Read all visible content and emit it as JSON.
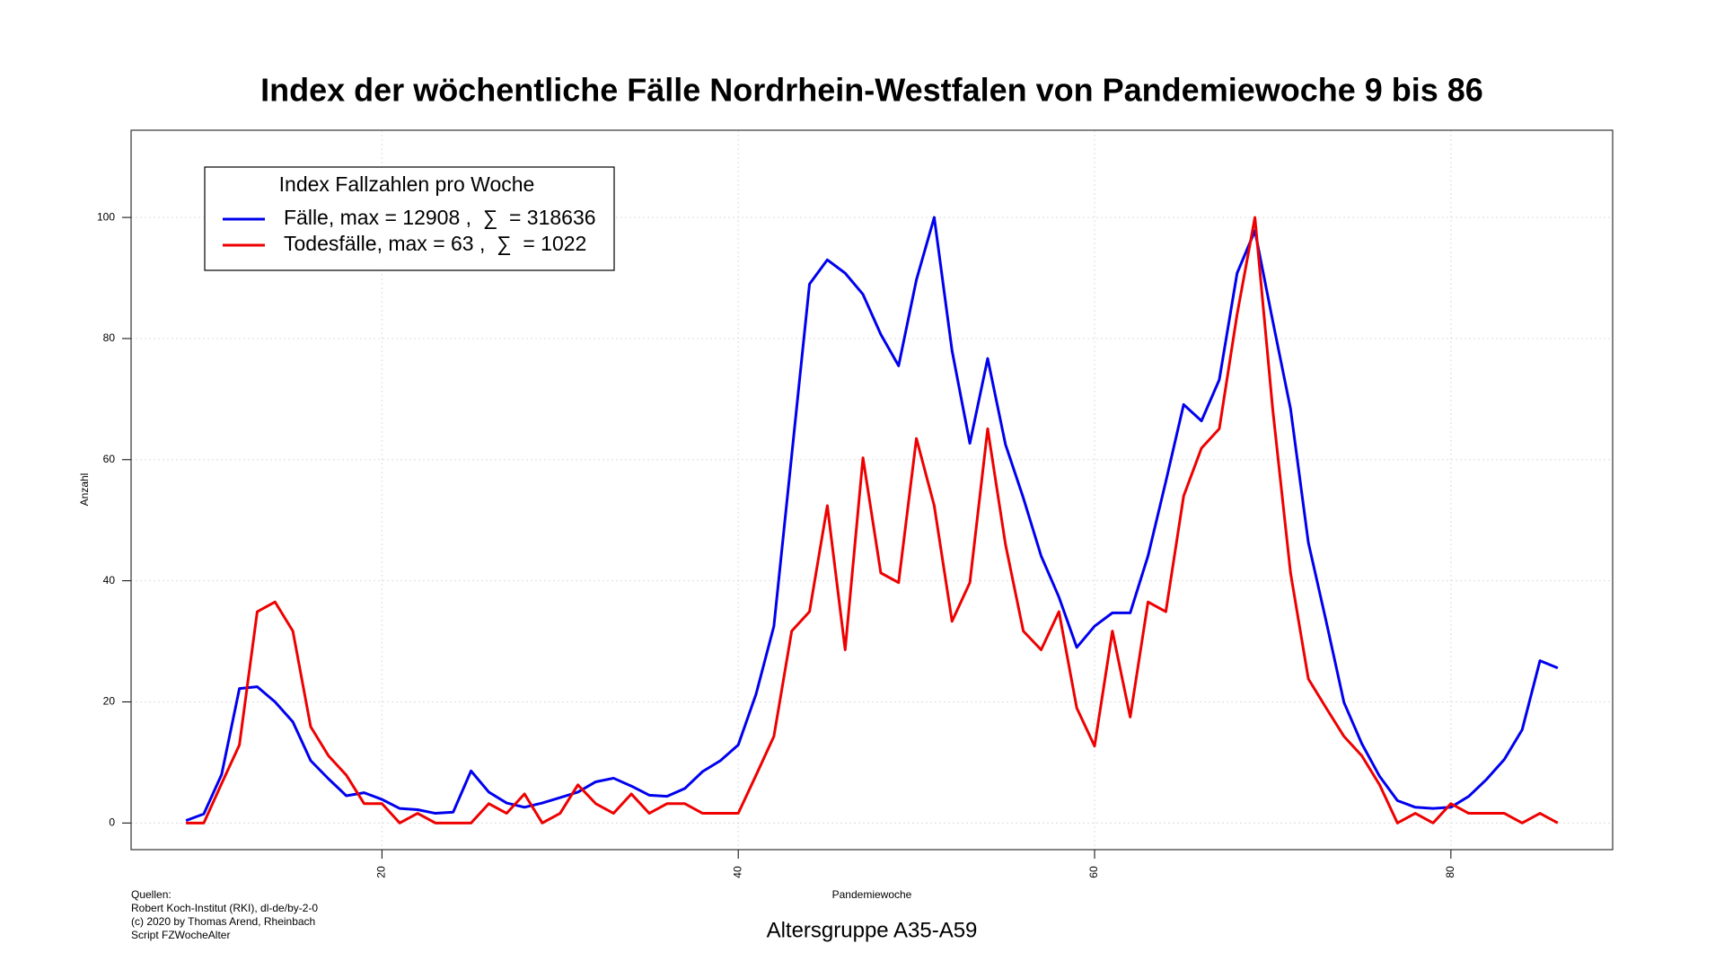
{
  "chart_data": {
    "type": "line",
    "title": "Index der wöchentliche Fälle Nordrhein-Westfalen von Pandemiewoche 9 bis 86",
    "subtitle": "Altersgruppe A35-A59",
    "x_label": "Pandemiewoche",
    "y_label": "Anzahl",
    "legend_title": "Index Fallzahlen pro Woche",
    "legend_position": "top-left",
    "notes": [
      "Quellen:",
      "Robert Koch-Institut (RKI), dl-de/by-2-0",
      "(c) 2020 by Thomas Arend, Rheinbach",
      "Script FZWocheAlter"
    ],
    "grid": true,
    "xlim": [
      5.92,
      89.08
    ],
    "xticks": [
      20,
      40,
      60,
      80
    ],
    "ylim": [
      -4.4,
      114.4
    ],
    "yticks": [
      0,
      20,
      40,
      60,
      80,
      100
    ],
    "x": [
      9,
      10,
      11,
      12,
      13,
      14,
      15,
      16,
      17,
      18,
      19,
      20,
      21,
      22,
      23,
      24,
      25,
      26,
      27,
      28,
      29,
      30,
      31,
      32,
      33,
      34,
      35,
      36,
      37,
      38,
      39,
      40,
      41,
      42,
      43,
      44,
      45,
      46,
      47,
      48,
      49,
      50,
      51,
      52,
      53,
      54,
      55,
      56,
      57,
      58,
      59,
      60,
      61,
      62,
      63,
      64,
      65,
      66,
      67,
      68,
      69,
      70,
      71,
      72,
      73,
      74,
      75,
      76,
      77,
      78,
      79,
      80,
      81,
      82,
      83,
      84,
      85,
      86
    ],
    "series": [
      {
        "name": "Fälle, max = 12908 ,  ∑  = 318636",
        "color": "#0000ee",
        "values": [
          0.4,
          1.5,
          8,
          22.2,
          22.5,
          20,
          16.7,
          10.3,
          7.3,
          4.5,
          5,
          3.9,
          2.4,
          2.2,
          1.6,
          1.8,
          8.6,
          5.1,
          3.3,
          2.6,
          3.3,
          4.2,
          5.1,
          6.8,
          7.4,
          6.1,
          4.6,
          4.4,
          5.7,
          8.5,
          10.3,
          12.9,
          21.3,
          32.5,
          60.7,
          89,
          93,
          90.8,
          87.3,
          80.7,
          75.5,
          89.7,
          100,
          78,
          62.7,
          76.7,
          62.5,
          53.7,
          44.1,
          37.3,
          29,
          32.5,
          34.7,
          34.7,
          44.1,
          56.4,
          69.1,
          66.4,
          73.2,
          90.8,
          97.8,
          82.9,
          68.4,
          46.3,
          33.3,
          19.9,
          13.1,
          7.7,
          3.7,
          2.6,
          2.4,
          2.6,
          4.4,
          7.2,
          10.5,
          15.4,
          26.8,
          25.6
        ]
      },
      {
        "name": "Todesfälle, max = 63 ,  ∑  = 1022",
        "color": "#ee0000",
        "values": [
          0,
          0,
          6.5,
          12.9,
          34.9,
          36.5,
          31.7,
          15.9,
          11.1,
          7.9,
          3.2,
          3.2,
          0,
          1.6,
          0,
          0,
          0,
          3.2,
          1.6,
          4.8,
          0,
          1.6,
          6.3,
          3.2,
          1.6,
          4.8,
          1.6,
          3.2,
          3.2,
          1.6,
          1.6,
          1.6,
          7.9,
          14.3,
          31.7,
          34.9,
          52.4,
          28.6,
          60.3,
          41.3,
          39.7,
          63.5,
          52.4,
          33.3,
          39.7,
          65.1,
          46,
          31.7,
          28.6,
          34.9,
          19,
          12.7,
          31.7,
          17.5,
          36.5,
          34.9,
          54,
          61.9,
          65.1,
          84,
          100,
          68.3,
          41.3,
          23.8,
          19,
          14.3,
          11.1,
          6.3,
          0,
          1.6,
          0,
          3.2,
          1.6,
          1.6,
          1.6,
          0,
          1.6,
          0
        ]
      }
    ]
  }
}
